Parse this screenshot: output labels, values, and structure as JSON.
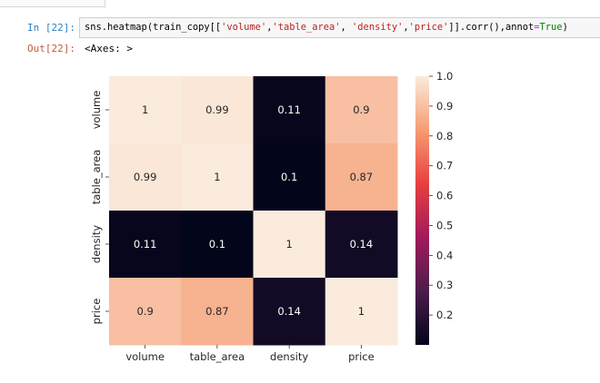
{
  "notebook": {
    "input_prompt": "In [22]:",
    "output_prompt": "Out[22]:",
    "code": {
      "fn": "sns.heatmap(train_copy[[",
      "s1": "'volume'",
      "c1": ",",
      "s2": "'table_area'",
      "c2": ", ",
      "s3": "'density'",
      "c3": ",",
      "s4": "'price'",
      "mid": "]].corr(),annot",
      "eq": "=",
      "kw": "True",
      "end": ")"
    },
    "output_text": "<Axes: >"
  },
  "chart_data": {
    "type": "heatmap",
    "x_labels": [
      "volume",
      "table_area",
      "density",
      "price"
    ],
    "y_labels": [
      "volume",
      "table_area",
      "density",
      "price"
    ],
    "values": [
      [
        1,
        0.99,
        0.11,
        0.9
      ],
      [
        0.99,
        1,
        0.1,
        0.87
      ],
      [
        0.11,
        0.1,
        1,
        0.14
      ],
      [
        0.9,
        0.87,
        0.14,
        1
      ]
    ],
    "annotations": [
      [
        "1",
        "0.99",
        "0.11",
        "0.9"
      ],
      [
        "0.99",
        "1",
        "0.1",
        "0.87"
      ],
      [
        "0.11",
        "0.1",
        "1",
        "0.14"
      ],
      [
        "0.9",
        "0.87",
        "0.14",
        "1"
      ]
    ],
    "colorbar": {
      "ticks": [
        "1.0",
        "0.9",
        "0.8",
        "0.7",
        "0.6",
        "0.5",
        "0.4",
        "0.3",
        "0.2"
      ],
      "tick_values": [
        1.0,
        0.9,
        0.8,
        0.7,
        0.6,
        0.5,
        0.4,
        0.3,
        0.2
      ],
      "vmin": 0.1,
      "vmax": 1.0,
      "colormap": "rocket",
      "colors_low_to_high": [
        "#03051a",
        "#4c1d4b",
        "#a11a5b",
        "#e83f3f",
        "#f69c73",
        "#faebdd"
      ]
    },
    "grid": false,
    "legend": "colorbar-right"
  }
}
